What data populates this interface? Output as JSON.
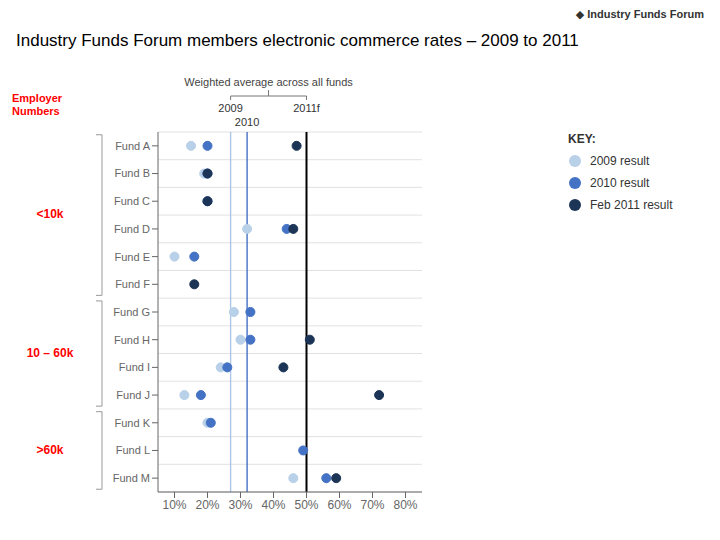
{
  "chart_data": {
    "type": "scatter",
    "title": "Industry Funds Forum members electronic commerce rates – 2009 to 2011",
    "categories": [
      "Fund A",
      "Fund B",
      "Fund C",
      "Fund D",
      "Fund E",
      "Fund F",
      "Fund G",
      "Fund H",
      "Fund I",
      "Fund J",
      "Fund K",
      "Fund L",
      "Fund M"
    ],
    "series": [
      {
        "name": "2009 result",
        "color": "#b8d0e8",
        "values": [
          15,
          19,
          null,
          32,
          10,
          null,
          28,
          30,
          24,
          13,
          20,
          null,
          46
        ]
      },
      {
        "name": "2010 result",
        "color": "#4472c4",
        "values": [
          20,
          20,
          20,
          44,
          16,
          null,
          33,
          33,
          26,
          18,
          21,
          49,
          56
        ]
      },
      {
        "name": "Feb 2011 result",
        "color": "#1c3557",
        "values": [
          47,
          20,
          20,
          46,
          null,
          16,
          null,
          51,
          43,
          72,
          null,
          null,
          59
        ]
      }
    ],
    "xlim": [
      5,
      85
    ],
    "xticks": [
      {
        "value": 10,
        "label": "10%"
      },
      {
        "value": 20,
        "label": "20%"
      },
      {
        "value": 30,
        "label": "30%"
      },
      {
        "value": 40,
        "label": "40%"
      },
      {
        "value": 50,
        "label": "50%"
      },
      {
        "value": 60,
        "label": "60%"
      },
      {
        "value": 70,
        "label": "70%"
      },
      {
        "value": 80,
        "label": "80%"
      }
    ],
    "grid": true,
    "legend": "right",
    "legend_title": "KEY:",
    "reference_lines": [
      {
        "value": 27,
        "label": "2009",
        "color": "#aec6e8"
      },
      {
        "value": 32,
        "label": "2010",
        "color": "#4472c4"
      },
      {
        "value": 50,
        "label": "2011f",
        "color": "#000000"
      }
    ],
    "reference_lines_label": "Weighted average across all funds",
    "employer_groups": {
      "title": "Employer Numbers",
      "color": "#ff0000",
      "groups": [
        {
          "label": "<10k",
          "categories": [
            "Fund A",
            "Fund B",
            "Fund C",
            "Fund D",
            "Fund E",
            "Fund F"
          ]
        },
        {
          "label": "10 – 60k",
          "categories": [
            "Fund G",
            "Fund H",
            "Fund I",
            "Fund J"
          ]
        },
        {
          "label": ">60k",
          "categories": [
            "Fund K",
            "Fund L",
            "Fund M"
          ]
        }
      ]
    },
    "logo": "◆ Industry Funds Forum"
  }
}
